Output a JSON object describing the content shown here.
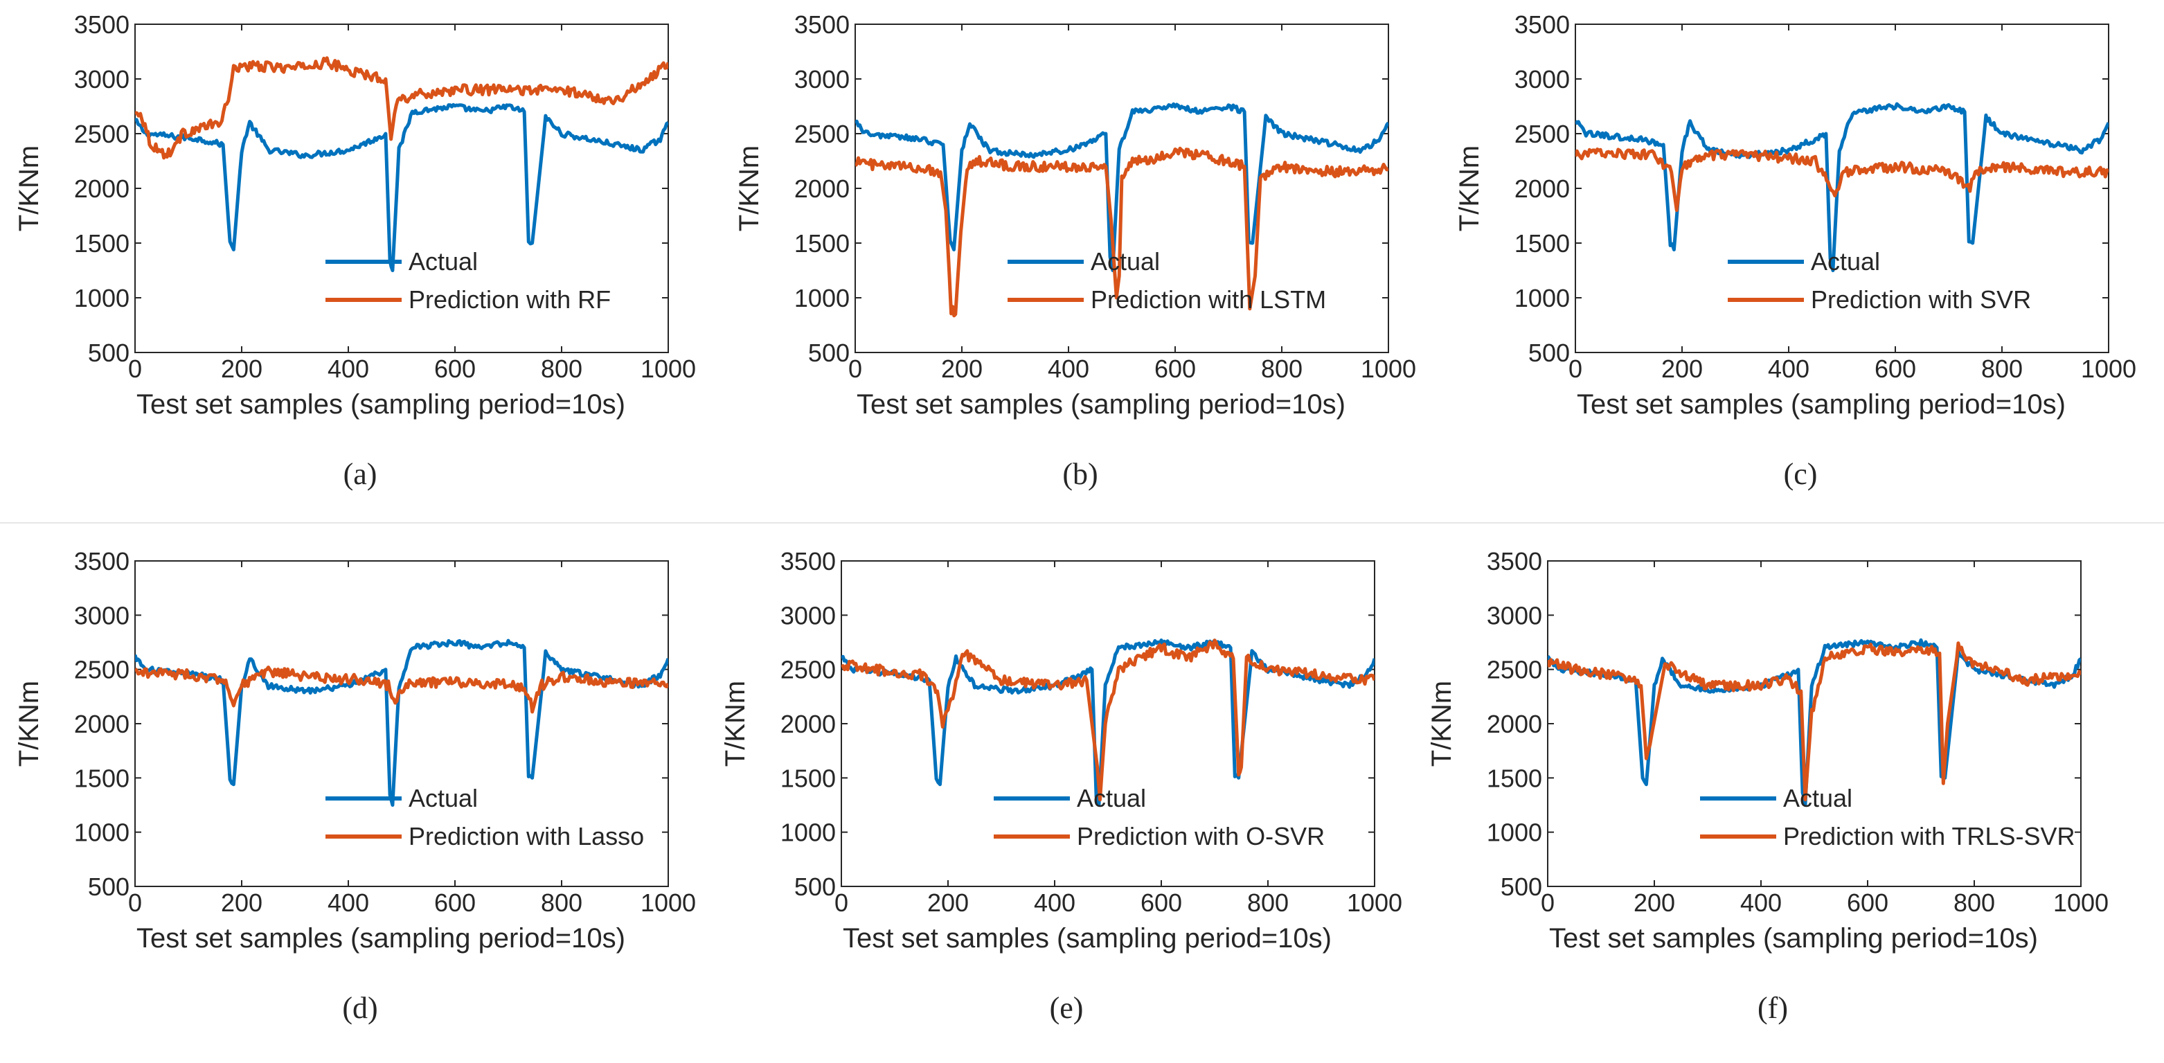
{
  "figure": {
    "panel_captions": [
      "(a)",
      "(b)",
      "(c)",
      "(d)",
      "(e)",
      "(f)"
    ]
  },
  "colors": {
    "actual": "#0072BD",
    "prediction": "#D95319",
    "axis": "#262626",
    "divider": "#e6e6e6"
  },
  "chart_data": [
    {
      "type": "line",
      "caption": "(a)",
      "ylabel": "T/KNm",
      "xlabel": "Test set samples (sampling period=10s)",
      "xlim": [
        0,
        1000
      ],
      "ylim": [
        500,
        3500
      ],
      "xticks": [
        0,
        200,
        400,
        600,
        800,
        1000
      ],
      "yticks": [
        500,
        1000,
        1500,
        2000,
        2500,
        3000,
        3500
      ],
      "legend": "bottom-center",
      "series": [
        {
          "name": "Actual",
          "role": "actual",
          "x": [
            0,
            20,
            60,
            120,
            165,
            178,
            185,
            200,
            215,
            250,
            320,
            400,
            450,
            470,
            478,
            483,
            495,
            520,
            600,
            650,
            700,
            730,
            738,
            745,
            770,
            800,
            900,
            950,
            985,
            1000
          ],
          "y": [
            2620,
            2500,
            2480,
            2450,
            2400,
            1500,
            1440,
            2350,
            2600,
            2350,
            2300,
            2350,
            2450,
            2500,
            1350,
            1250,
            2350,
            2700,
            2750,
            2700,
            2750,
            2700,
            1520,
            1500,
            2650,
            2500,
            2400,
            2350,
            2450,
            2600
          ]
        },
        {
          "name": "Prediction with RF",
          "role": "prediction",
          "x": [
            0,
            10,
            30,
            60,
            90,
            120,
            160,
            175,
            185,
            200,
            300,
            360,
            420,
            470,
            480,
            490,
            520,
            600,
            700,
            800,
            850,
            900,
            950,
            1000
          ],
          "y": [
            2680,
            2700,
            2400,
            2300,
            2500,
            2550,
            2600,
            2800,
            3100,
            3120,
            3100,
            3150,
            3050,
            3000,
            2450,
            2800,
            2850,
            2900,
            2900,
            2900,
            2850,
            2800,
            2950,
            3150
          ]
        }
      ]
    },
    {
      "type": "line",
      "caption": "(b)",
      "ylabel": "T/KNm",
      "xlabel": "Test set samples (sampling period=10s)",
      "xlim": [
        0,
        1000
      ],
      "ylim": [
        500,
        3500
      ],
      "xticks": [
        0,
        200,
        400,
        600,
        800,
        1000
      ],
      "yticks": [
        500,
        1000,
        1500,
        2000,
        2500,
        3000,
        3500
      ],
      "legend": "bottom-right",
      "series": [
        {
          "name": "Actual",
          "role": "actual",
          "x": [
            0,
            20,
            60,
            120,
            165,
            178,
            185,
            200,
            215,
            250,
            320,
            400,
            450,
            470,
            478,
            483,
            495,
            520,
            600,
            650,
            700,
            730,
            738,
            745,
            770,
            800,
            900,
            950,
            985,
            1000
          ],
          "y": [
            2620,
            2500,
            2480,
            2450,
            2400,
            1500,
            1440,
            2350,
            2600,
            2350,
            2300,
            2350,
            2450,
            2500,
            1350,
            1250,
            2350,
            2700,
            2750,
            2700,
            2750,
            2700,
            1520,
            1500,
            2650,
            2500,
            2400,
            2350,
            2450,
            2600
          ]
        },
        {
          "name": "Prediction with LSTM",
          "role": "prediction",
          "x": [
            0,
            50,
            100,
            160,
            170,
            180,
            188,
            198,
            210,
            230,
            300,
            400,
            470,
            480,
            490,
            495,
            500,
            520,
            560,
            600,
            700,
            730,
            740,
            750,
            760,
            800,
            900,
            1000
          ],
          "y": [
            2250,
            2200,
            2200,
            2150,
            1800,
            900,
            850,
            1600,
            2200,
            2250,
            2200,
            2200,
            2200,
            1700,
            1000,
            1200,
            2100,
            2250,
            2250,
            2350,
            2250,
            2200,
            900,
            1200,
            2100,
            2200,
            2150,
            2180
          ]
        }
      ]
    },
    {
      "type": "line",
      "caption": "(c)",
      "ylabel": "T/KNm",
      "xlabel": "Test set samples (sampling period=10s)",
      "xlim": [
        0,
        1000
      ],
      "ylim": [
        500,
        3500
      ],
      "xticks": [
        0,
        200,
        400,
        600,
        800,
        1000
      ],
      "yticks": [
        500,
        1000,
        1500,
        2000,
        2500,
        3000,
        3500
      ],
      "legend": "bottom-right",
      "series": [
        {
          "name": "Actual",
          "role": "actual",
          "x": [
            0,
            20,
            60,
            120,
            165,
            178,
            185,
            200,
            215,
            250,
            320,
            400,
            450,
            470,
            478,
            483,
            495,
            520,
            600,
            650,
            700,
            730,
            738,
            745,
            770,
            800,
            900,
            950,
            985,
            1000
          ],
          "y": [
            2620,
            2500,
            2480,
            2450,
            2400,
            1500,
            1440,
            2350,
            2600,
            2350,
            2300,
            2350,
            2450,
            2500,
            1350,
            1250,
            2350,
            2700,
            2750,
            2700,
            2750,
            2700,
            1520,
            1500,
            2650,
            2500,
            2400,
            2350,
            2450,
            2600
          ]
        },
        {
          "name": "Prediction with SVR",
          "role": "prediction",
          "x": [
            0,
            50,
            150,
            180,
            190,
            200,
            250,
            350,
            450,
            480,
            490,
            500,
            600,
            700,
            740,
            750,
            800,
            900,
            1000
          ],
          "y": [
            2300,
            2330,
            2300,
            2150,
            1800,
            2200,
            2300,
            2300,
            2250,
            2000,
            1950,
            2150,
            2200,
            2150,
            2000,
            2150,
            2200,
            2150,
            2150
          ]
        }
      ]
    },
    {
      "type": "line",
      "caption": "(d)",
      "ylabel": "T/KNm",
      "xlabel": "Test set samples (sampling period=10s)",
      "xlim": [
        0,
        1000
      ],
      "ylim": [
        500,
        3500
      ],
      "xticks": [
        0,
        200,
        400,
        600,
        800,
        1000
      ],
      "yticks": [
        500,
        1000,
        1500,
        2000,
        2500,
        3000,
        3500
      ],
      "legend": "bottom-center",
      "series": [
        {
          "name": "Actual",
          "role": "actual",
          "x": [
            0,
            20,
            60,
            120,
            165,
            178,
            185,
            200,
            215,
            250,
            320,
            400,
            450,
            470,
            478,
            483,
            495,
            520,
            600,
            650,
            700,
            730,
            738,
            745,
            770,
            800,
            900,
            950,
            985,
            1000
          ],
          "y": [
            2620,
            2500,
            2480,
            2450,
            2400,
            1500,
            1440,
            2350,
            2600,
            2350,
            2300,
            2350,
            2450,
            2500,
            1350,
            1250,
            2350,
            2700,
            2750,
            2700,
            2750,
            2700,
            1520,
            1500,
            2650,
            2500,
            2400,
            2350,
            2450,
            2600
          ]
        },
        {
          "name": "Prediction with Lasso",
          "role": "prediction",
          "x": [
            0,
            100,
            170,
            185,
            200,
            250,
            350,
            450,
            475,
            485,
            500,
            520,
            600,
            700,
            730,
            745,
            760,
            800,
            900,
            1000
          ],
          "y": [
            2480,
            2450,
            2400,
            2200,
            2350,
            2480,
            2420,
            2400,
            2350,
            2200,
            2300,
            2380,
            2380,
            2370,
            2330,
            2150,
            2350,
            2430,
            2380,
            2370
          ]
        }
      ]
    },
    {
      "type": "line",
      "caption": "(e)",
      "ylabel": "T/KNm",
      "xlabel": "Test set samples (sampling period=10s)",
      "xlim": [
        0,
        1000
      ],
      "ylim": [
        500,
        3500
      ],
      "xticks": [
        0,
        200,
        400,
        600,
        800,
        1000
      ],
      "yticks": [
        500,
        1000,
        1500,
        2000,
        2500,
        3000,
        3500
      ],
      "legend": "bottom-right",
      "series": [
        {
          "name": "Actual",
          "role": "actual",
          "x": [
            0,
            20,
            60,
            120,
            165,
            178,
            185,
            200,
            215,
            250,
            320,
            400,
            450,
            470,
            478,
            483,
            495,
            520,
            600,
            650,
            700,
            730,
            738,
            745,
            770,
            800,
            900,
            950,
            985,
            1000
          ],
          "y": [
            2620,
            2500,
            2480,
            2450,
            2400,
            1500,
            1440,
            2350,
            2600,
            2350,
            2300,
            2350,
            2450,
            2500,
            1350,
            1250,
            2350,
            2700,
            2750,
            2700,
            2750,
            2700,
            1520,
            1500,
            2650,
            2500,
            2400,
            2350,
            2450,
            2600
          ]
        },
        {
          "name": "Prediction with O-SVR",
          "role": "prediction",
          "x": [
            0,
            60,
            150,
            180,
            190,
            200,
            230,
            300,
            400,
            460,
            480,
            485,
            495,
            520,
            600,
            650,
            700,
            735,
            745,
            750,
            760,
            800,
            900,
            1000
          ],
          "y": [
            2550,
            2500,
            2450,
            2300,
            2000,
            2100,
            2650,
            2400,
            2350,
            2400,
            1600,
            1300,
            2000,
            2500,
            2700,
            2600,
            2750,
            2600,
            1550,
            1600,
            2600,
            2500,
            2450,
            2400
          ]
        }
      ]
    },
    {
      "type": "line",
      "caption": "(f)",
      "ylabel": "T/KNm",
      "xlabel": "Test set samples (sampling period=10s)",
      "xlim": [
        0,
        1000
      ],
      "ylim": [
        500,
        3500
      ],
      "xticks": [
        0,
        200,
        400,
        600,
        800,
        1000
      ],
      "yticks": [
        500,
        1000,
        1500,
        2000,
        2500,
        3000,
        3500
      ],
      "legend": "bottom-right",
      "series": [
        {
          "name": "Actual",
          "role": "actual",
          "x": [
            0,
            20,
            60,
            120,
            165,
            178,
            185,
            200,
            215,
            250,
            320,
            400,
            450,
            470,
            478,
            483,
            495,
            520,
            600,
            650,
            700,
            730,
            738,
            745,
            770,
            800,
            900,
            950,
            985,
            1000
          ],
          "y": [
            2620,
            2500,
            2480,
            2450,
            2400,
            1500,
            1440,
            2350,
            2600,
            2350,
            2300,
            2350,
            2450,
            2500,
            1350,
            1250,
            2350,
            2700,
            2750,
            2700,
            2750,
            2700,
            1520,
            1500,
            2650,
            2500,
            2400,
            2350,
            2450,
            2600
          ]
        },
        {
          "name": "Prediction with TRLS-SVR",
          "role": "prediction",
          "x": [
            0,
            50,
            150,
            175,
            185,
            195,
            220,
            300,
            400,
            450,
            475,
            483,
            495,
            520,
            600,
            650,
            700,
            735,
            742,
            750,
            770,
            800,
            900,
            1000
          ],
          "y": [
            2580,
            2500,
            2420,
            2350,
            1700,
            1900,
            2550,
            2350,
            2350,
            2420,
            2300,
            1300,
            2100,
            2600,
            2700,
            2650,
            2700,
            2650,
            1450,
            2000,
            2700,
            2550,
            2400,
            2450
          ]
        }
      ]
    }
  ]
}
